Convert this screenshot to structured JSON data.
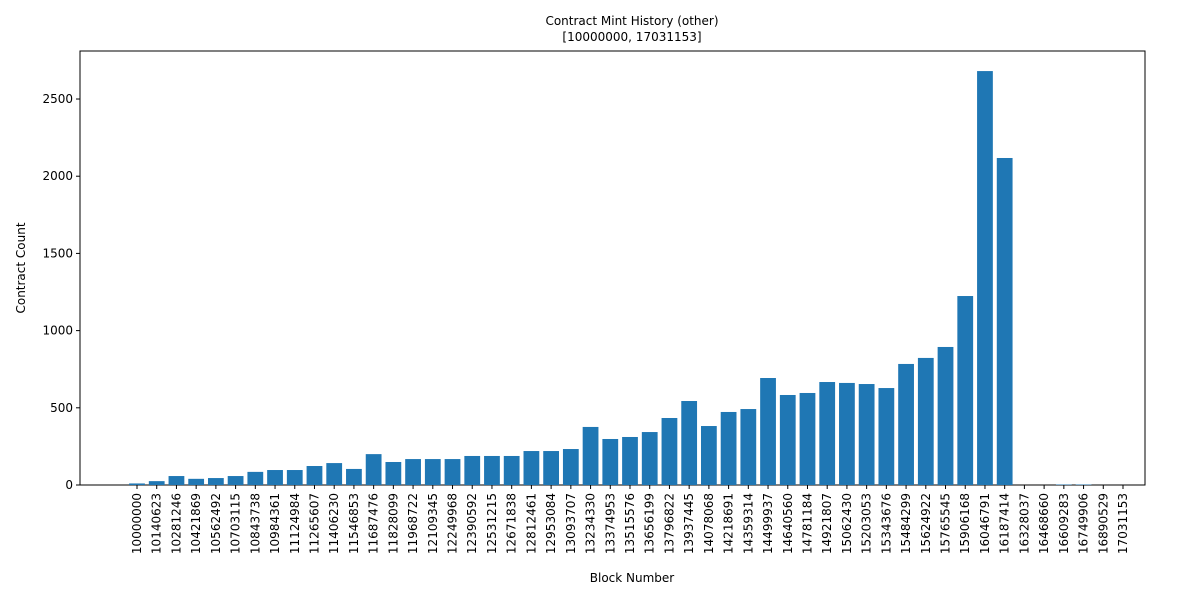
{
  "chart_data": {
    "type": "bar",
    "title": "Contract Mint History (other)",
    "subtitle": "[10000000, 17031153]",
    "x_label": "Block Number",
    "y_label": "Contract Count",
    "color": "#1f77b4",
    "categories": [
      "10000000",
      "10140623",
      "10281246",
      "10421869",
      "10562492",
      "10703115",
      "10843738",
      "10984361",
      "11124984",
      "11265607",
      "11406230",
      "11546853",
      "11687476",
      "11828099",
      "11968722",
      "12109345",
      "12249968",
      "12390592",
      "12531215",
      "12671838",
      "12812461",
      "12953084",
      "13093707",
      "13234330",
      "13374953",
      "13515576",
      "13656199",
      "13796822",
      "13937445",
      "14078068",
      "14218691",
      "14359314",
      "14499937",
      "14640560",
      "14781184",
      "14921807",
      "15062430",
      "15203053",
      "15343676",
      "15484299",
      "15624922",
      "15765545",
      "15906168",
      "16046791",
      "16187414",
      "16328037",
      "16468660",
      "16609283",
      "16749906",
      "16890529",
      "17031153"
    ],
    "values": [
      10,
      25,
      58,
      40,
      45,
      58,
      85,
      97,
      97,
      123,
      142,
      104,
      200,
      149,
      168,
      168,
      168,
      188,
      188,
      188,
      220,
      220,
      233,
      376,
      298,
      311,
      343,
      434,
      544,
      382,
      473,
      492,
      693,
      583,
      596,
      667,
      661,
      654,
      628,
      784,
      823,
      894,
      1224,
      2681,
      2118,
      0,
      0,
      3,
      3,
      0,
      0
    ],
    "ylim": [
      0,
      2811
    ],
    "yticks": [
      0,
      500,
      1000,
      1500,
      2000,
      2500
    ]
  }
}
